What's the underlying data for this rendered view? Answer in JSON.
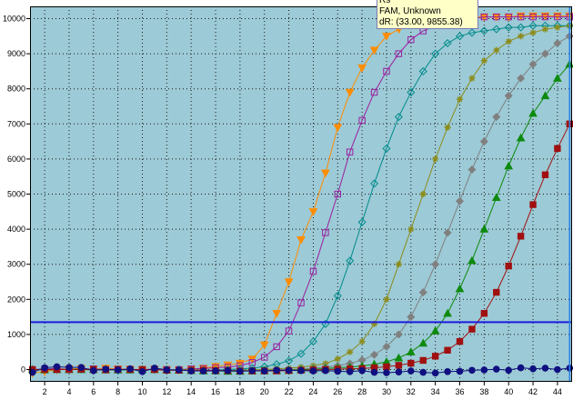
{
  "chart_data": {
    "type": "line",
    "title": "",
    "xlabel": "",
    "ylabel": "",
    "xlim": [
      0.8,
      45.2
    ],
    "ylim": [
      -350,
      10350
    ],
    "x_ticks": [
      2,
      4,
      6,
      8,
      10,
      12,
      14,
      16,
      18,
      20,
      22,
      24,
      26,
      28,
      30,
      32,
      34,
      36,
      38,
      40,
      42,
      44
    ],
    "y_ticks": [
      0,
      1000,
      2000,
      3000,
      4000,
      5000,
      6000,
      7000,
      8000,
      9000,
      10000
    ],
    "grid": true,
    "plot_background": "#9ccad6",
    "threshold": {
      "value": 1350,
      "color": "#1c1ce0"
    },
    "cursor": {
      "x": 45,
      "color": "#2a7ee6"
    },
    "tooltip": {
      "lines": [
        "Rs",
        "FAM, Unknown",
        "dR: (33.00, 9855.38)"
      ]
    },
    "series": [
      {
        "color": "#ff8c00",
        "marker": "triangle-down",
        "fill": true,
        "values": [
          -100,
          -60,
          -10,
          20,
          30,
          10,
          40,
          20,
          10,
          0,
          10,
          0,
          -20,
          20,
          40,
          90,
          130,
          180,
          300,
          700,
          1600,
          2500,
          3700,
          4500,
          5600,
          6900,
          7900,
          8600,
          9100,
          9500,
          9700,
          9850,
          9900,
          9950,
          10000,
          10000,
          10050,
          10050,
          10050,
          10050,
          10080,
          10080,
          10080,
          10080,
          10080
        ]
      },
      {
        "color": "#9a1fa0",
        "marker": "square",
        "fill": false,
        "values": [
          0,
          20,
          30,
          10,
          0,
          20,
          0,
          10,
          -10,
          0,
          10,
          0,
          0,
          20,
          30,
          50,
          70,
          110,
          200,
          350,
          650,
          1100,
          1900,
          2800,
          3900,
          5000,
          6200,
          7100,
          7900,
          8500,
          9000,
          9400,
          9650,
          9800,
          9900,
          9950,
          10000,
          10050,
          10050,
          10050,
          10050,
          10050,
          10050,
          10050,
          10050
        ]
      },
      {
        "color": "#008b8b",
        "marker": "diamond",
        "fill": false,
        "values": [
          0,
          10,
          0,
          0,
          10,
          0,
          0,
          -20,
          -10,
          0,
          -10,
          0,
          0,
          -20,
          -20,
          -20,
          0,
          20,
          40,
          80,
          150,
          250,
          450,
          800,
          1300,
          2100,
          3100,
          4200,
          5300,
          6300,
          7200,
          7900,
          8500,
          9000,
          9300,
          9500,
          9600,
          9650,
          9700,
          9750,
          9750,
          9800,
          9800,
          9800,
          9800
        ]
      },
      {
        "color": "#8c8c1c",
        "marker": "star",
        "fill": true,
        "values": [
          0,
          -10,
          0,
          20,
          0,
          -20,
          0,
          0,
          0,
          0,
          0,
          -10,
          0,
          0,
          -20,
          -30,
          -30,
          -20,
          -10,
          0,
          20,
          40,
          70,
          110,
          170,
          300,
          500,
          800,
          1300,
          2000,
          3000,
          4000,
          5000,
          6000,
          6900,
          7700,
          8300,
          8800,
          9100,
          9350,
          9500,
          9600,
          9700,
          9750,
          9800
        ]
      },
      {
        "color": "#808080",
        "marker": "diamond",
        "fill": true,
        "values": [
          0,
          -10,
          0,
          0,
          0,
          -10,
          0,
          0,
          -10,
          0,
          0,
          0,
          -10,
          -20,
          -30,
          -20,
          -30,
          -40,
          -30,
          -20,
          -10,
          0,
          20,
          40,
          70,
          110,
          170,
          270,
          420,
          650,
          1000,
          1500,
          2200,
          3000,
          3900,
          4800,
          5700,
          6500,
          7200,
          7800,
          8300,
          8700,
          9000,
          9300,
          9500
        ]
      },
      {
        "color": "#0e8a0e",
        "marker": "triangle-up",
        "fill": true,
        "values": [
          0,
          -10,
          0,
          0,
          0,
          0,
          -10,
          -10,
          -10,
          0,
          0,
          -10,
          -20,
          -30,
          -40,
          -40,
          -50,
          -50,
          -40,
          -30,
          -30,
          -20,
          0,
          10,
          30,
          50,
          70,
          100,
          150,
          220,
          330,
          500,
          750,
          1100,
          1600,
          2300,
          3100,
          4000,
          4900,
          5800,
          6600,
          7300,
          7800,
          8300,
          8700
        ]
      },
      {
        "color": "#a01010",
        "marker": "square",
        "fill": true,
        "values": [
          0,
          0,
          0,
          0,
          10,
          0,
          -10,
          0,
          0,
          0,
          0,
          -20,
          -20,
          -20,
          -20,
          -30,
          -30,
          -40,
          -40,
          -40,
          -40,
          -30,
          -20,
          -10,
          0,
          10,
          20,
          30,
          50,
          80,
          120,
          180,
          260,
          380,
          550,
          800,
          1150,
          1600,
          2200,
          2950,
          3800,
          4700,
          5550,
          6300,
          7000
        ]
      },
      {
        "color": "#101080",
        "marker": "circle",
        "fill": true,
        "values": [
          -80,
          50,
          80,
          60,
          60,
          -30,
          10,
          -10,
          20,
          -60,
          40,
          -10,
          -10,
          -40,
          -40,
          -40,
          -30,
          -50,
          -30,
          -40,
          -20,
          -20,
          -30,
          -40,
          -30,
          -50,
          -60,
          -30,
          -80,
          -90,
          -70,
          -40,
          -80,
          -100,
          -60,
          -50,
          -20,
          -10,
          10,
          -20,
          50,
          20,
          40,
          0,
          40
        ]
      }
    ]
  }
}
